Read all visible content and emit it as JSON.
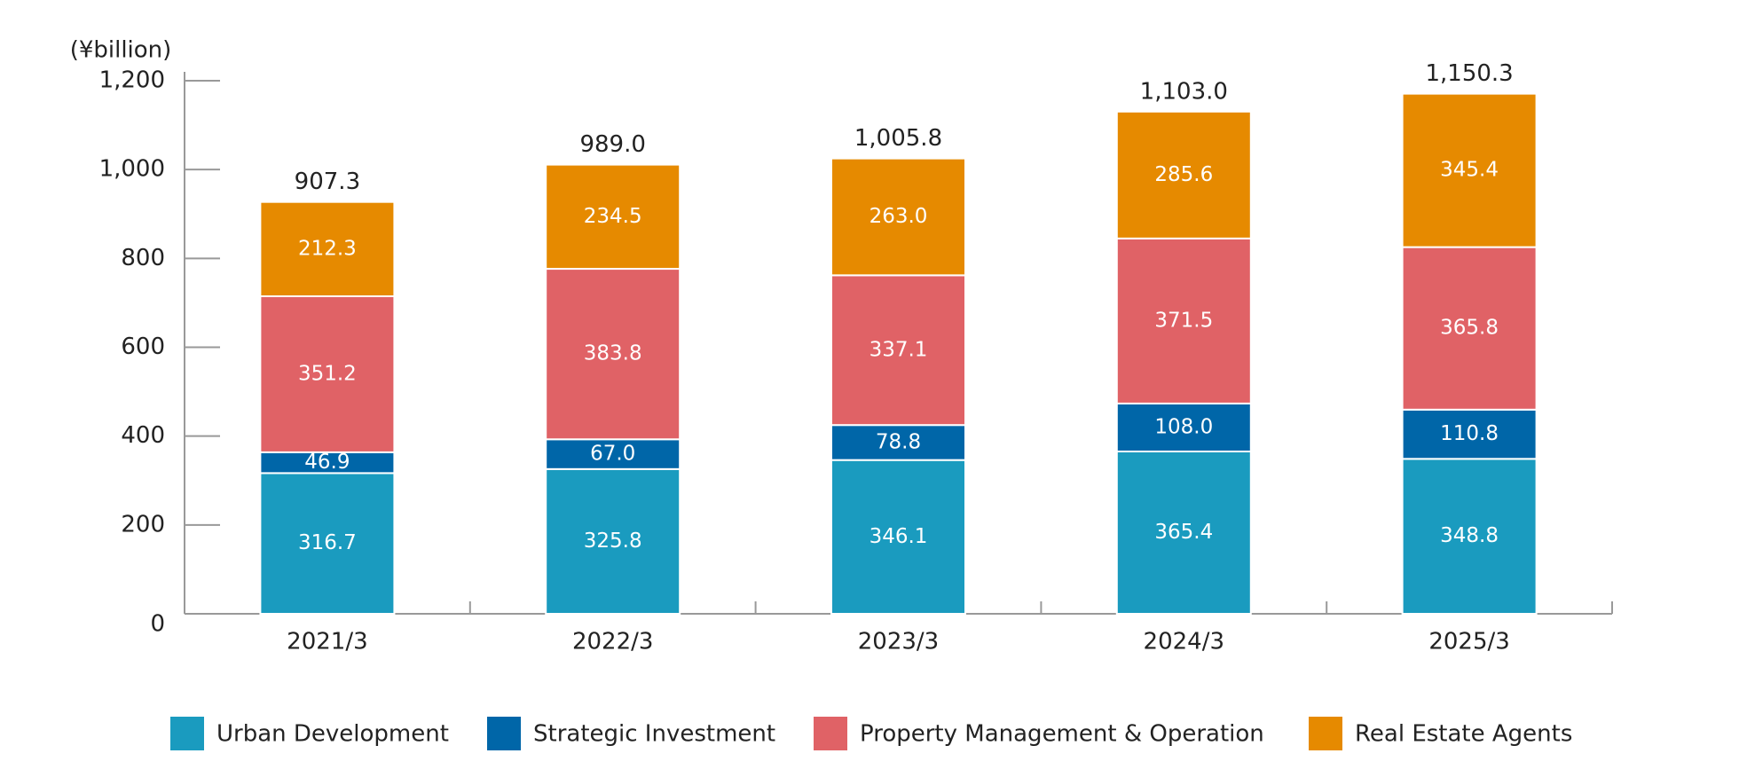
{
  "chart_data": {
    "type": "stacked_bar",
    "unit_label": "(¥billion)",
    "categories": [
      "2021/3",
      "2022/3",
      "2023/3",
      "2024/3",
      "2025/3"
    ],
    "series": [
      {
        "name": "Urban Development",
        "color": "#1a9bbf",
        "values": [
          316.7,
          325.8,
          346.1,
          365.4,
          348.8
        ]
      },
      {
        "name": "Strategic Investment",
        "color": "#0066a8",
        "values": [
          46.9,
          67.0,
          78.8,
          108.0,
          110.8
        ],
        "value_labels": [
          "46.9",
          "67.0",
          "78.8",
          "108.0",
          "110.8"
        ]
      },
      {
        "name": "Property Management & Operation",
        "color": "#e06266",
        "values": [
          351.2,
          383.8,
          337.1,
          371.5,
          365.8
        ]
      },
      {
        "name": "Real Estate Agents",
        "color": "#e68a00",
        "values": [
          212.3,
          234.5,
          263.0,
          285.6,
          345.4
        ],
        "value_labels": [
          "212.3",
          "234.5",
          "263.0",
          "285.6",
          "345.4"
        ]
      }
    ],
    "totals": {
      "values": [
        907.3,
        989.0,
        1005.8,
        1103.0,
        1150.3
      ],
      "value_labels": [
        "907.3",
        "989.0",
        "1,005.8",
        "1,103.0",
        "1,150.3"
      ]
    },
    "ylim": [
      0,
      1200
    ],
    "yticks": [
      0,
      200,
      400,
      600,
      800,
      {
        "value": 1000,
        "label": "1,000"
      },
      {
        "value": 1200,
        "label": "1,200"
      }
    ],
    "legend": "bottom"
  }
}
